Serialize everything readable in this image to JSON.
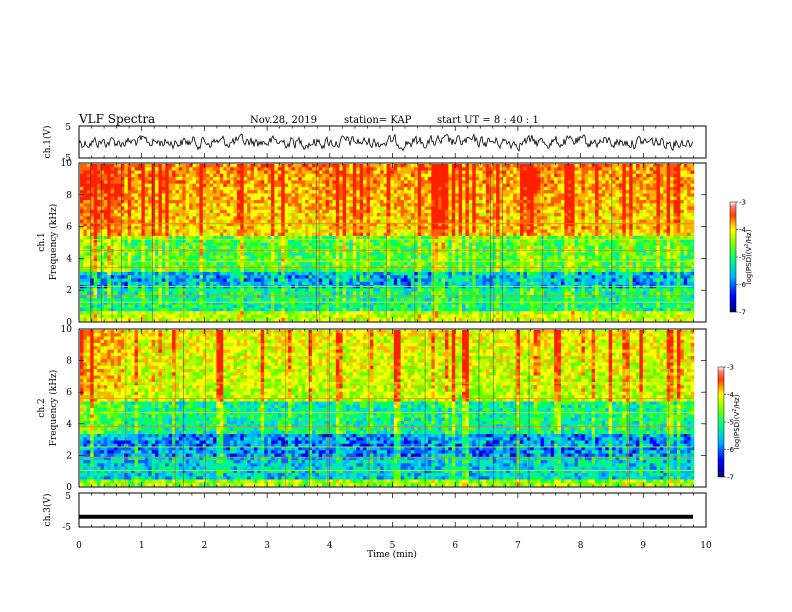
{
  "header": {
    "title": "VLF Spectra",
    "date": "Nov.28, 2019",
    "station": "station= KAP",
    "start_ut": "start  UT  =   8  : 40 : 1"
  },
  "chart_data": [
    {
      "type": "line",
      "panel": "ch1-waveform",
      "ylabel": "ch.1(V)",
      "ylim": [
        -5,
        5
      ],
      "yticks": [
        "5",
        "-5"
      ],
      "xlim": [
        0,
        10
      ],
      "series": [
        {
          "note": "noise waveform"
        }
      ]
    },
    {
      "type": "heatmap",
      "panel": "ch1-spectrogram",
      "ylabel": "ch.1\nFrequency (kHz)",
      "ylabel_line1": "ch.1",
      "ylabel_line2": "Frequency  (kHz)",
      "ylim": [
        0,
        10
      ],
      "yticks": [
        "0",
        "2",
        "4",
        "6",
        "8",
        "10"
      ],
      "xlim": [
        0,
        10
      ],
      "colorbar": {
        "label": "log(PSD)(V²/Hz)",
        "range": [
          -7,
          -3
        ],
        "ticks": [
          "-3",
          "-4",
          "-5",
          "-6",
          "-7"
        ]
      }
    },
    {
      "type": "heatmap",
      "panel": "ch2-spectrogram",
      "ylabel_line1": "ch.2",
      "ylabel_line2": "Frequency  (kHz)",
      "ylim": [
        0,
        10
      ],
      "yticks": [
        "0",
        "2",
        "4",
        "6",
        "8",
        "10"
      ],
      "xlim": [
        0,
        10
      ],
      "colorbar": {
        "label": "log(PSD)(V²/Hz)",
        "range": [
          -7,
          -3
        ],
        "ticks": [
          "-3",
          "-4",
          "-5",
          "-6",
          "-7"
        ]
      }
    },
    {
      "type": "line",
      "panel": "ch3-waveform",
      "ylabel": "ch.3(V)",
      "ylim": [
        -5,
        5
      ],
      "yticks": [
        "5",
        "-5"
      ],
      "xlim": [
        0,
        10
      ],
      "series": [
        {
          "note": "flat",
          "value": -2
        }
      ]
    }
  ],
  "xaxis": {
    "label": "Time  (min)",
    "ticks": [
      "0",
      "1",
      "2",
      "3",
      "4",
      "5",
      "6",
      "7",
      "8",
      "9",
      "10"
    ],
    "xlim": [
      0,
      10
    ]
  },
  "colorbar_label_parts": {
    "pre": "log(PSD)(V",
    "sup": "2",
    "post": "/Hz)"
  }
}
